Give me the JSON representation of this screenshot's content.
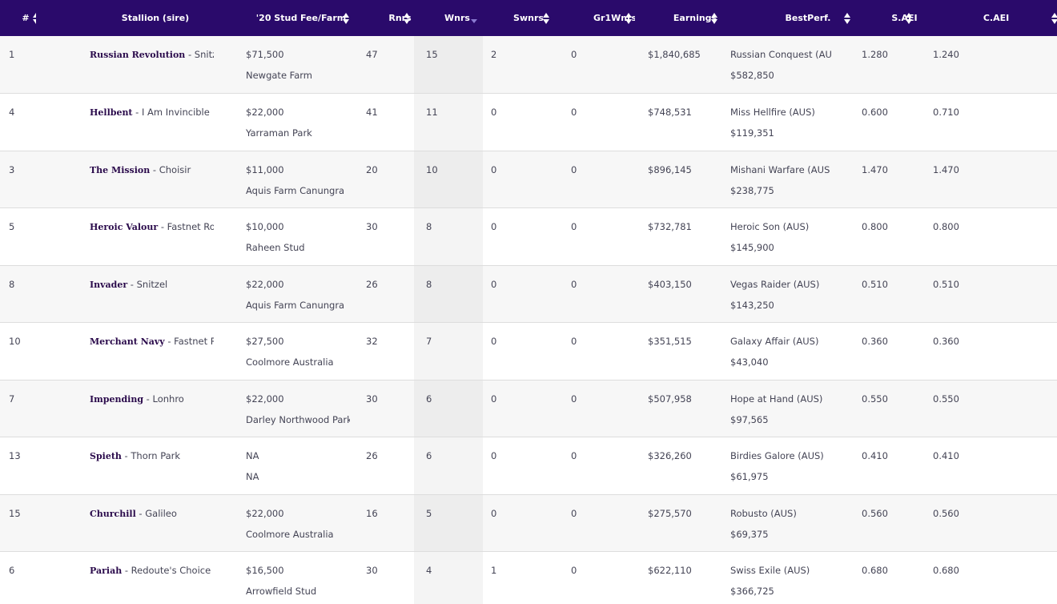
{
  "table": {
    "columns": [
      {
        "label": "#",
        "sort": "both"
      },
      {
        "label": "Stallion (sire)",
        "sort": "both"
      },
      {
        "label": "'20 Stud Fee/Farm",
        "sort": "both"
      },
      {
        "label": "Rnrs",
        "sort": "both"
      },
      {
        "label": "Wnrs",
        "sort": "desc"
      },
      {
        "label": "Swnrs",
        "sort": "both"
      },
      {
        "label": "Gr1Wnrs",
        "sort": "both"
      },
      {
        "label": "Earnings",
        "sort": "both"
      },
      {
        "label": "BestPerf.",
        "sort": "both"
      },
      {
        "label": "S.AEI",
        "sort": "both"
      },
      {
        "label": "C.AEI",
        "sort": "both"
      }
    ],
    "separator": " - ",
    "rows": [
      {
        "rank": "1",
        "stallion": "Russian Revolution",
        "sire": "Snitzel",
        "fee": "$71,500",
        "farm": "Newgate Farm",
        "rnrs": "47",
        "wnrs": "15",
        "swnrs": "2",
        "gr1wnrs": "0",
        "earnings": "$1,840,685",
        "best_perf": "Russian Conquest (AU",
        "best_perf_earnings": "$582,850",
        "s_aei": "1.280",
        "c_aei": "1.240"
      },
      {
        "rank": "4",
        "stallion": "Hellbent",
        "sire": "I Am Invincible",
        "fee": "$22,000",
        "farm": "Yarraman Park",
        "rnrs": "41",
        "wnrs": "11",
        "swnrs": "0",
        "gr1wnrs": "0",
        "earnings": "$748,531",
        "best_perf": "Miss Hellfire (AUS)",
        "best_perf_earnings": "$119,351",
        "s_aei": "0.600",
        "c_aei": "0.710"
      },
      {
        "rank": "3",
        "stallion": "The Mission",
        "sire": "Choisir",
        "fee": "$11,000",
        "farm": "Aquis Farm Canungra",
        "rnrs": "20",
        "wnrs": "10",
        "swnrs": "0",
        "gr1wnrs": "0",
        "earnings": "$896,145",
        "best_perf": "Mishani Warfare (AUS",
        "best_perf_earnings": "$238,775",
        "s_aei": "1.470",
        "c_aei": "1.470"
      },
      {
        "rank": "5",
        "stallion": "Heroic Valour",
        "sire": "Fastnet Rock",
        "fee": "$10,000",
        "farm": "Raheen Stud",
        "rnrs": "30",
        "wnrs": "8",
        "swnrs": "0",
        "gr1wnrs": "0",
        "earnings": "$732,781",
        "best_perf": "Heroic Son (AUS)",
        "best_perf_earnings": "$145,900",
        "s_aei": "0.800",
        "c_aei": "0.800"
      },
      {
        "rank": "8",
        "stallion": "Invader",
        "sire": "Snitzel",
        "fee": "$22,000",
        "farm": "Aquis Farm Canungra",
        "rnrs": "26",
        "wnrs": "8",
        "swnrs": "0",
        "gr1wnrs": "0",
        "earnings": "$403,150",
        "best_perf": "Vegas Raider (AUS)",
        "best_perf_earnings": "$143,250",
        "s_aei": "0.510",
        "c_aei": "0.510"
      },
      {
        "rank": "10",
        "stallion": "Merchant Navy",
        "sire": "Fastnet Rock",
        "fee": "$27,500",
        "farm": "Coolmore Australia",
        "rnrs": "32",
        "wnrs": "7",
        "swnrs": "0",
        "gr1wnrs": "0",
        "earnings": "$351,515",
        "best_perf": "Galaxy Affair (AUS)",
        "best_perf_earnings": "$43,040",
        "s_aei": "0.360",
        "c_aei": "0.360"
      },
      {
        "rank": "7",
        "stallion": "Impending",
        "sire": "Lonhro",
        "fee": "$22,000",
        "farm": "Darley Northwood Park",
        "rnrs": "30",
        "wnrs": "6",
        "swnrs": "0",
        "gr1wnrs": "0",
        "earnings": "$507,958",
        "best_perf": "Hope at Hand (AUS)",
        "best_perf_earnings": "$97,565",
        "s_aei": "0.550",
        "c_aei": "0.550"
      },
      {
        "rank": "13",
        "stallion": "Spieth",
        "sire": "Thorn Park",
        "fee": "NA",
        "farm": "NA",
        "rnrs": "26",
        "wnrs": "6",
        "swnrs": "0",
        "gr1wnrs": "0",
        "earnings": "$326,260",
        "best_perf": "Birdies Galore (AUS)",
        "best_perf_earnings": "$61,975",
        "s_aei": "0.410",
        "c_aei": "0.410"
      },
      {
        "rank": "15",
        "stallion": "Churchill",
        "sire": "Galileo",
        "fee": "$22,000",
        "farm": "Coolmore Australia",
        "rnrs": "16",
        "wnrs": "5",
        "swnrs": "0",
        "gr1wnrs": "0",
        "earnings": "$275,570",
        "best_perf": "Robusto (AUS)",
        "best_perf_earnings": "$69,375",
        "s_aei": "0.560",
        "c_aei": "0.560"
      },
      {
        "rank": "6",
        "stallion": "Pariah",
        "sire": "Redoute's Choice",
        "fee": "$16,500",
        "farm": "Arrowfield Stud",
        "rnrs": "30",
        "wnrs": "4",
        "swnrs": "1",
        "gr1wnrs": "0",
        "earnings": "$622,110",
        "best_perf": "Swiss Exile (AUS)",
        "best_perf_earnings": "$366,725",
        "s_aei": "0.680",
        "c_aei": "0.680"
      }
    ]
  },
  "colors": {
    "header_bg": "#2a0a6b",
    "sort_active": "#8a7ad0",
    "sort_inactive": "#ffffff",
    "stallion_link": "#2a0a4b"
  }
}
